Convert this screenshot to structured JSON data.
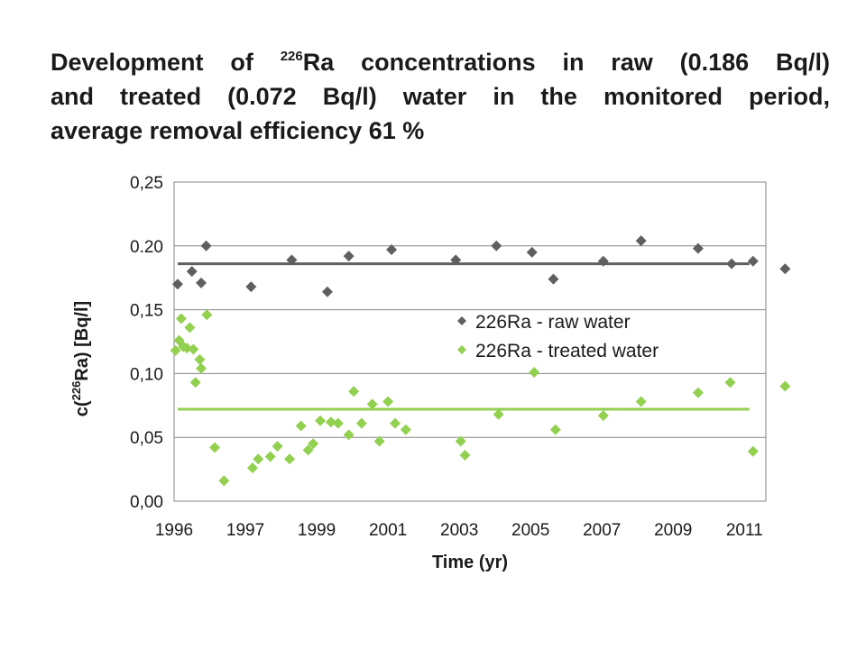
{
  "slide": {
    "title_prefix": "Development of ",
    "title_sup": "226",
    "title_line1_rest": "Ra concentrations in raw (0.186 Bq/l)",
    "title_line2": "and treated (0.072 Bq/l) water in the monitored period,",
    "title_line3": "average removal efficiency 61 %"
  },
  "chart_data": {
    "type": "scatter",
    "title": "",
    "xlabel": "Time (yr)",
    "ylabel_prefix": "c(",
    "ylabel_sup": "226",
    "ylabel_suffix": "Ra) [Bq/l]",
    "x_tick_labels": [
      "1996",
      "1997",
      "1999",
      "2001",
      "2003",
      "2005",
      "2007",
      "2009",
      "2011"
    ],
    "y_tick_labels": [
      "0,00",
      "0,05",
      "0,10",
      "0,15",
      "0.20",
      "0,25"
    ],
    "x_tick_positions": [
      0,
      1,
      2,
      3,
      4,
      5,
      6,
      7,
      8
    ],
    "xlim": [
      0,
      8.3
    ],
    "ylim": [
      0,
      0.25
    ],
    "ytick_step": 0.05,
    "grid": "horizontal",
    "legend_position": "right-middle",
    "series": [
      {
        "name": "226Ra - raw water",
        "color": "#5f5f5f",
        "marker": "diamond",
        "mean": 0.186,
        "mean_line_x": [
          0.05,
          8.07
        ],
        "points": [
          [
            0.05,
            0.17
          ],
          [
            0.25,
            0.18
          ],
          [
            0.38,
            0.171
          ],
          [
            0.45,
            0.2
          ],
          [
            1.08,
            0.168
          ],
          [
            1.65,
            0.189
          ],
          [
            2.15,
            0.164
          ],
          [
            2.45,
            0.192
          ],
          [
            3.05,
            0.197
          ],
          [
            3.95,
            0.189
          ],
          [
            4.52,
            0.2
          ],
          [
            5.02,
            0.195
          ],
          [
            5.32,
            0.174
          ],
          [
            6.02,
            0.188
          ],
          [
            6.55,
            0.204
          ],
          [
            7.35,
            0.198
          ],
          [
            7.82,
            0.186
          ],
          [
            8.12,
            0.188
          ],
          [
            8.57,
            0.182
          ]
        ]
      },
      {
        "name": "226Ra - treated water",
        "color": "#92d050",
        "marker": "diamond",
        "mean": 0.072,
        "mean_line_x": [
          0.05,
          8.07
        ],
        "points": [
          [
            0.02,
            0.118
          ],
          [
            0.07,
            0.126
          ],
          [
            0.1,
            0.143
          ],
          [
            0.13,
            0.121
          ],
          [
            0.18,
            0.12
          ],
          [
            0.22,
            0.136
          ],
          [
            0.27,
            0.119
          ],
          [
            0.3,
            0.093
          ],
          [
            0.36,
            0.111
          ],
          [
            0.38,
            0.104
          ],
          [
            0.46,
            0.146
          ],
          [
            0.57,
            0.042
          ],
          [
            0.7,
            0.016
          ],
          [
            1.1,
            0.026
          ],
          [
            1.18,
            0.033
          ],
          [
            1.35,
            0.035
          ],
          [
            1.45,
            0.043
          ],
          [
            1.62,
            0.033
          ],
          [
            1.78,
            0.059
          ],
          [
            1.88,
            0.04
          ],
          [
            1.95,
            0.045
          ],
          [
            2.05,
            0.063
          ],
          [
            2.2,
            0.062
          ],
          [
            2.3,
            0.061
          ],
          [
            2.45,
            0.052
          ],
          [
            2.52,
            0.086
          ],
          [
            2.63,
            0.061
          ],
          [
            2.78,
            0.076
          ],
          [
            2.88,
            0.047
          ],
          [
            3.0,
            0.078
          ],
          [
            3.1,
            0.061
          ],
          [
            3.25,
            0.056
          ],
          [
            4.02,
            0.047
          ],
          [
            4.08,
            0.036
          ],
          [
            4.55,
            0.068
          ],
          [
            5.05,
            0.101
          ],
          [
            5.35,
            0.056
          ],
          [
            6.02,
            0.067
          ],
          [
            6.55,
            0.078
          ],
          [
            7.35,
            0.085
          ],
          [
            7.8,
            0.093
          ],
          [
            8.12,
            0.039
          ],
          [
            8.57,
            0.09
          ]
        ]
      }
    ]
  }
}
